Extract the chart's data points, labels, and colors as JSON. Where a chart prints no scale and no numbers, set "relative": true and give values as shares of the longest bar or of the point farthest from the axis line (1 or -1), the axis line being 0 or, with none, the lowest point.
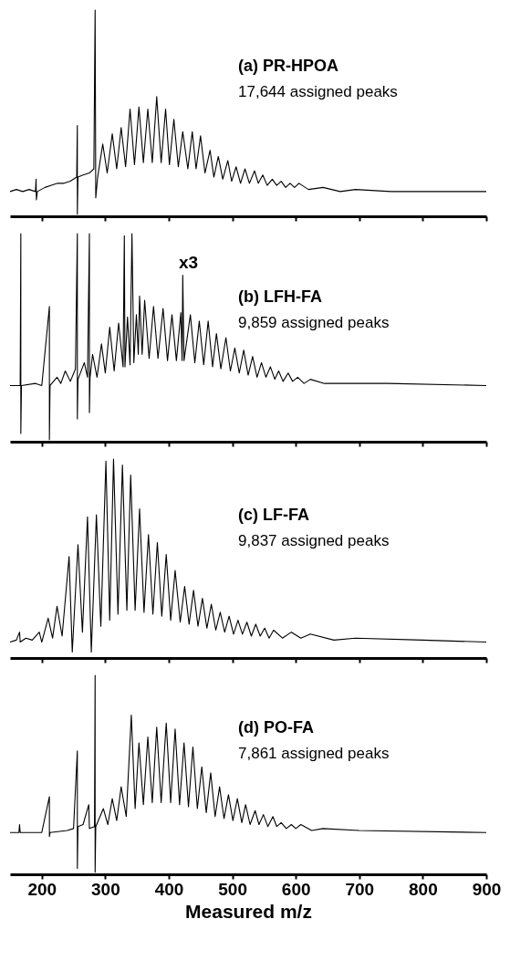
{
  "chart_data": [
    {
      "type": "line",
      "title": "(a) PR-HPOA",
      "subtitle": "17,644 assigned peaks",
      "relative": true,
      "xlim": [
        150,
        900
      ],
      "xticks": [
        200,
        300,
        400,
        500,
        600,
        700,
        800,
        900
      ],
      "tick_labels": false,
      "series": [
        {
          "color": "#000000",
          "x": [
            150,
            160,
            170,
            180,
            190,
            191,
            191.5,
            193,
            205,
            215,
            225,
            235,
            245,
            255,
            256,
            256,
            257,
            265,
            275,
            282,
            284,
            285,
            288,
            296,
            303,
            311,
            318,
            325,
            332,
            339,
            346,
            353,
            360,
            367,
            374,
            381,
            388,
            395,
            401,
            408,
            415,
            422,
            430,
            437,
            443,
            450,
            457,
            465,
            471,
            478,
            485,
            493,
            499,
            506,
            513,
            520,
            527,
            535,
            541,
            548,
            555,
            563,
            570,
            577,
            584,
            591,
            598,
            605,
            620,
            643,
            670,
            694,
            750,
            900
          ],
          "values": [
            0.12,
            0.13,
            0.12,
            0.13,
            0.12,
            0.18,
            0.08,
            0.12,
            0.14,
            0.15,
            0.16,
            0.16,
            0.17,
            0.19,
            0.44,
            0.01,
            0.19,
            0.2,
            0.21,
            0.23,
            1,
            0.09,
            0.19,
            0.35,
            0.21,
            0.4,
            0.23,
            0.43,
            0.24,
            0.52,
            0.25,
            0.53,
            0.26,
            0.52,
            0.26,
            0.58,
            0.26,
            0.52,
            0.25,
            0.47,
            0.24,
            0.41,
            0.23,
            0.41,
            0.23,
            0.39,
            0.21,
            0.32,
            0.19,
            0.29,
            0.18,
            0.27,
            0.17,
            0.24,
            0.16,
            0.23,
            0.16,
            0.22,
            0.16,
            0.2,
            0.15,
            0.18,
            0.15,
            0.17,
            0.14,
            0.16,
            0.14,
            0.16,
            0.13,
            0.14,
            0.12,
            0.13,
            0.12,
            0.12
          ]
        }
      ]
    },
    {
      "type": "line",
      "title": "(b) LFH-FA",
      "subtitle": "9,859 assigned peaks",
      "annotations": [
        "x3"
      ],
      "relative": true,
      "xlim": [
        150,
        900
      ],
      "xticks": [
        200,
        300,
        400,
        500,
        600,
        700,
        800,
        900
      ],
      "tick_labels": false,
      "series": [
        {
          "color": "#000000",
          "x": [
            150,
            166,
            167,
            167,
            168,
            190,
            200,
            212,
            212,
            213,
            224,
            230,
            237,
            245,
            253,
            256,
            256,
            257,
            267,
            272,
            275,
            275,
            276,
            280,
            287,
            294,
            300,
            307,
            314,
            321,
            328,
            330,
            331,
            335,
            339,
            342,
            345,
            349,
            352,
            354,
            358,
            362,
            369,
            376,
            383,
            391,
            398,
            405,
            412,
            419,
            421,
            422,
            424,
            434,
            441,
            448,
            455,
            462,
            469,
            475,
            482,
            490,
            497,
            504,
            511,
            518,
            525,
            532,
            539,
            546,
            553,
            560,
            567,
            573,
            580,
            588,
            595,
            603,
            613,
            623,
            645,
            669,
            745,
            900
          ],
          "values": [
            0.27,
            0.27,
            1,
            0.04,
            0.27,
            0.28,
            0.27,
            0.65,
            0.01,
            0.27,
            0.31,
            0.28,
            0.34,
            0.29,
            0.35,
            1,
            0.11,
            0.3,
            0.38,
            0.31,
            1,
            0.14,
            0.31,
            0.42,
            0.31,
            0.47,
            0.33,
            0.55,
            0.34,
            0.57,
            0.36,
            0.99,
            0.36,
            0.6,
            0.37,
            1,
            0.38,
            0.61,
            0.42,
            0.7,
            0.42,
            0.68,
            0.4,
            0.65,
            0.4,
            0.64,
            0.39,
            0.61,
            0.39,
            0.62,
            0.39,
            0.8,
            0.39,
            0.61,
            0.38,
            0.58,
            0.37,
            0.58,
            0.36,
            0.52,
            0.35,
            0.5,
            0.34,
            0.45,
            0.33,
            0.44,
            0.32,
            0.41,
            0.31,
            0.38,
            0.31,
            0.36,
            0.3,
            0.34,
            0.29,
            0.33,
            0.29,
            0.31,
            0.28,
            0.3,
            0.28,
            0.28,
            0.28,
            0.27
          ]
        }
      ]
    },
    {
      "type": "line",
      "title": "(c) LF-FA",
      "subtitle": "9,837 assigned peaks",
      "relative": true,
      "xlim": [
        150,
        900
      ],
      "xticks": [
        200,
        300,
        400,
        500,
        600,
        700,
        800,
        900
      ],
      "tick_labels": false,
      "series": [
        {
          "color": "#000000",
          "x": [
            150,
            160,
            165,
            166,
            175,
            185,
            196,
            200,
            210,
            217,
            224,
            232,
            243,
            248,
            257,
            264,
            272,
            278,
            286,
            293,
            301,
            307,
            313,
            320,
            327,
            334,
            340,
            347,
            354,
            361,
            368,
            375,
            382,
            389,
            396,
            403,
            410,
            418,
            425,
            432,
            439,
            446,
            453,
            460,
            467,
            474,
            481,
            488,
            495,
            502,
            509,
            516,
            523,
            530,
            537,
            544,
            551,
            558,
            565,
            579,
            593,
            608,
            623,
            660,
            694,
            800,
            900
          ],
          "values": [
            0.08,
            0.09,
            0.13,
            0.08,
            0.1,
            0.09,
            0.13,
            0.08,
            0.2,
            0.1,
            0.26,
            0.11,
            0.51,
            0.03,
            0.57,
            0.13,
            0.71,
            0.03,
            0.72,
            0.16,
            0.99,
            0.19,
            1,
            0.22,
            0.97,
            0.24,
            0.92,
            0.24,
            0.75,
            0.23,
            0.62,
            0.22,
            0.58,
            0.21,
            0.52,
            0.19,
            0.44,
            0.18,
            0.36,
            0.17,
            0.34,
            0.16,
            0.3,
            0.15,
            0.27,
            0.14,
            0.23,
            0.13,
            0.21,
            0.12,
            0.19,
            0.12,
            0.18,
            0.11,
            0.17,
            0.11,
            0.15,
            0.1,
            0.14,
            0.1,
            0.13,
            0.1,
            0.12,
            0.09,
            0.1,
            0.09,
            0.08
          ]
        }
      ]
    },
    {
      "type": "line",
      "title": "(d) PO-FA",
      "subtitle": "7,861 assigned peaks",
      "xlabel": "Measured m/z",
      "relative": true,
      "xlim": [
        150,
        900
      ],
      "xticks": [
        200,
        300,
        400,
        500,
        600,
        700,
        800,
        900
      ],
      "series": [
        {
          "color": "#000000",
          "x": [
            150,
            164,
            165,
            166,
            200,
            212,
            212,
            213,
            240,
            250,
            256,
            256,
            257,
            265,
            274,
            275,
            283,
            284,
            284,
            285,
            297,
            304,
            311,
            318,
            325,
            333,
            341,
            347,
            353,
            360,
            367,
            374,
            381,
            388,
            396,
            403,
            410,
            417,
            424,
            431,
            438,
            445,
            452,
            459,
            466,
            473,
            480,
            487,
            494,
            501,
            508,
            515,
            521,
            528,
            536,
            542,
            549,
            556,
            564,
            570,
            577,
            585,
            593,
            600,
            608,
            625,
            643,
            700,
            900
          ],
          "values": [
            0.21,
            0.21,
            0.25,
            0.21,
            0.21,
            0.39,
            0.19,
            0.21,
            0.22,
            0.23,
            0.62,
            0.03,
            0.24,
            0.25,
            0.35,
            0.23,
            0.24,
            1,
            0.01,
            0.24,
            0.33,
            0.25,
            0.38,
            0.27,
            0.44,
            0.29,
            0.8,
            0.33,
            0.66,
            0.35,
            0.69,
            0.36,
            0.74,
            0.36,
            0.76,
            0.36,
            0.73,
            0.35,
            0.66,
            0.34,
            0.64,
            0.33,
            0.54,
            0.31,
            0.51,
            0.29,
            0.44,
            0.28,
            0.4,
            0.27,
            0.38,
            0.26,
            0.35,
            0.25,
            0.32,
            0.25,
            0.3,
            0.24,
            0.29,
            0.24,
            0.26,
            0.23,
            0.25,
            0.23,
            0.25,
            0.22,
            0.23,
            0.22,
            0.21
          ]
        }
      ]
    }
  ]
}
